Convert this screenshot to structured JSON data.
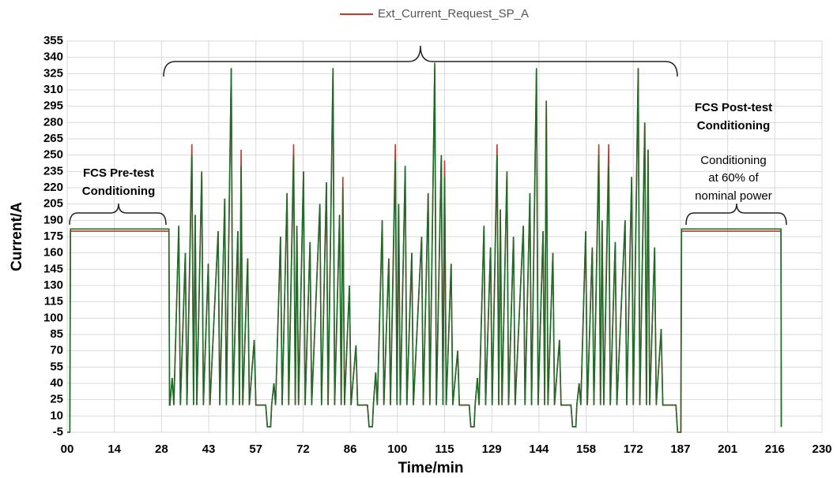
{
  "chart_data": {
    "type": "line",
    "xlabel": "Time/min",
    "ylabel": "Current/A",
    "annotations": [
      "FCS Pre-test",
      "Conditioning",
      "FCS Post-test",
      "Conditioning",
      "Conditioning",
      "at 60% of",
      "nominal power"
    ],
    "xlim": [
      0,
      230
    ],
    "ylim": [
      -5,
      355
    ],
    "xticks": [
      {
        "value": 0,
        "label": "00"
      },
      {
        "value": 14.375,
        "label": "14"
      },
      {
        "value": 28.75,
        "label": "28"
      },
      {
        "value": 43.125,
        "label": "43"
      },
      {
        "value": 57.5,
        "label": "57"
      },
      {
        "value": 71.875,
        "label": "72"
      },
      {
        "value": 86.25,
        "label": "86"
      },
      {
        "value": 100.625,
        "label": "100"
      },
      {
        "value": 115,
        "label": "115"
      },
      {
        "value": 129.375,
        "label": "129"
      },
      {
        "value": 143.75,
        "label": "144"
      },
      {
        "value": 158.125,
        "label": "158"
      },
      {
        "value": 172.5,
        "label": "172"
      },
      {
        "value": 186.875,
        "label": "187"
      },
      {
        "value": 201.25,
        "label": "201"
      },
      {
        "value": 215.625,
        "label": "216"
      },
      {
        "value": 230,
        "label": "230"
      }
    ],
    "yticks": [
      -5,
      10,
      25,
      40,
      55,
      70,
      85,
      100,
      115,
      130,
      145,
      160,
      175,
      190,
      205,
      220,
      235,
      250,
      265,
      280,
      295,
      310,
      325,
      340,
      355
    ],
    "grid": true,
    "x": [
      0,
      0.8,
      1,
      31,
      31.2,
      31.3,
      32,
      32.5,
      34,
      34.5,
      36,
      36.5,
      38,
      38.5,
      39,
      39.5,
      41,
      41.5,
      43,
      43.5,
      46,
      46.5,
      48,
      48.5,
      50,
      50.5,
      52,
      52.5,
      53,
      53.5,
      55,
      55.5,
      57,
      57.5,
      60.5,
      61,
      62,
      62.3,
      63,
      63.5,
      65,
      65.5,
      67,
      67.5,
      69,
      69.5,
      70,
      70.5,
      72,
      72.5,
      74,
      74.5,
      77,
      77.5,
      79,
      79.5,
      81,
      81.5,
      83,
      83.5,
      84,
      84.5,
      86,
      86.5,
      88,
      88.5,
      91.5,
      92,
      93,
      93.3,
      94,
      94.5,
      96,
      96.5,
      98,
      98.5,
      100,
      100.5,
      101,
      101.5,
      103,
      103.5,
      105,
      105.5,
      108,
      108.5,
      110,
      110.5,
      112,
      112.5,
      114,
      114.5,
      115,
      115.5,
      117,
      117.5,
      119,
      119.5,
      122.5,
      123,
      124,
      124.3,
      125,
      125.5,
      127,
      127.5,
      129,
      129.5,
      131,
      131.5,
      132,
      132.5,
      134,
      134.5,
      136,
      136.5,
      139,
      139.5,
      141,
      141.5,
      143,
      143.5,
      145,
      145.5,
      146,
      146.5,
      148,
      148.5,
      150,
      150.5,
      153.5,
      154,
      155,
      155.3,
      156,
      156.5,
      158,
      158.5,
      160,
      160.5,
      162,
      162.5,
      163,
      163.5,
      165,
      165.5,
      167,
      167.5,
      170,
      170.5,
      172,
      172.5,
      174,
      174.5,
      176,
      176.5,
      177,
      177.5,
      179,
      179.5,
      181,
      181.5,
      184.5,
      185.5,
      186,
      187,
      187.2,
      217.5,
      217.6
    ],
    "series": [
      {
        "name": "Ext_Current_Request_SP_A",
        "color": "#c0392b",
        "values": [
          -5,
          -5,
          180,
          180,
          20,
          20,
          45,
          20,
          185,
          20,
          160,
          20,
          260,
          20,
          195,
          20,
          235,
          20,
          150,
          20,
          180,
          20,
          210,
          20,
          330,
          20,
          180,
          20,
          255,
          20,
          155,
          20,
          80,
          20,
          20,
          0,
          0,
          20,
          40,
          20,
          175,
          20,
          215,
          20,
          260,
          20,
          185,
          20,
          235,
          20,
          170,
          20,
          205,
          20,
          225,
          20,
          330,
          20,
          195,
          20,
          230,
          20,
          130,
          20,
          75,
          20,
          20,
          0,
          0,
          20,
          50,
          20,
          190,
          20,
          155,
          20,
          260,
          20,
          205,
          20,
          240,
          20,
          160,
          20,
          175,
          20,
          215,
          20,
          330,
          20,
          250,
          20,
          245,
          20,
          150,
          20,
          70,
          20,
          20,
          0,
          0,
          20,
          45,
          20,
          185,
          20,
          165,
          20,
          260,
          20,
          200,
          20,
          235,
          20,
          175,
          20,
          185,
          20,
          215,
          20,
          330,
          20,
          180,
          20,
          300,
          20,
          160,
          20,
          80,
          20,
          20,
          0,
          0,
          20,
          40,
          20,
          180,
          20,
          165,
          20,
          260,
          20,
          190,
          20,
          260,
          20,
          170,
          20,
          190,
          20,
          230,
          20,
          330,
          20,
          280,
          20,
          255,
          20,
          165,
          20,
          90,
          20,
          20,
          20,
          -5,
          -5,
          180,
          180,
          0
        ]
      },
      {
        "color": "#1e6b2a",
        "values": [
          -5,
          -5,
          182,
          182,
          20,
          20,
          45,
          20,
          185,
          20,
          160,
          20,
          250,
          20,
          195,
          20,
          235,
          20,
          150,
          20,
          180,
          20,
          210,
          20,
          330,
          20,
          180,
          20,
          240,
          20,
          155,
          20,
          80,
          20,
          20,
          0,
          0,
          20,
          40,
          20,
          175,
          20,
          215,
          20,
          250,
          20,
          185,
          20,
          235,
          20,
          170,
          20,
          205,
          20,
          225,
          20,
          330,
          20,
          195,
          20,
          220,
          20,
          130,
          20,
          75,
          20,
          20,
          0,
          0,
          20,
          50,
          20,
          190,
          20,
          155,
          20,
          245,
          20,
          205,
          20,
          240,
          20,
          160,
          20,
          175,
          20,
          215,
          20,
          335,
          20,
          250,
          20,
          230,
          20,
          150,
          20,
          70,
          20,
          20,
          0,
          0,
          20,
          45,
          20,
          185,
          20,
          165,
          20,
          250,
          20,
          200,
          20,
          235,
          20,
          175,
          20,
          185,
          20,
          215,
          20,
          330,
          20,
          180,
          20,
          300,
          20,
          160,
          20,
          80,
          20,
          20,
          0,
          0,
          20,
          40,
          20,
          180,
          20,
          165,
          20,
          250,
          20,
          190,
          20,
          240,
          20,
          170,
          20,
          190,
          20,
          230,
          20,
          330,
          20,
          280,
          20,
          255,
          20,
          165,
          20,
          90,
          20,
          20,
          20,
          -5,
          -5,
          182,
          182,
          0
        ]
      }
    ]
  }
}
